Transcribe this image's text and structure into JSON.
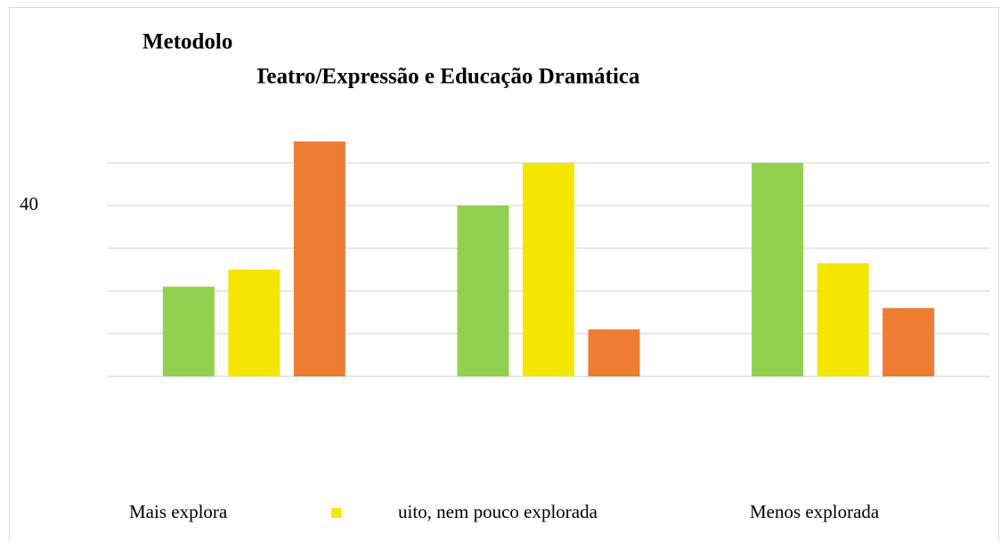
{
  "chart_data": {
    "type": "bar",
    "title": "Metodolo",
    "subtitle": "Teatro/Expressão e Educação Dramática",
    "categories": [
      null,
      null,
      null
    ],
    "series": [
      {
        "name": "Mais explora",
        "color": "#92d050",
        "values": [
          21,
          40,
          50
        ]
      },
      {
        "name": "uito, nem pouco explorada",
        "color": "#f5e600",
        "values": [
          25,
          50,
          26.5
        ]
      },
      {
        "name": "Menos explorada",
        "color": "#ed7d31",
        "values": [
          55,
          11,
          16
        ]
      }
    ],
    "ylim": [
      0,
      55
    ],
    "yticks": [
      40
    ],
    "ygrid": [
      0,
      10,
      20,
      30,
      40,
      50
    ],
    "grid": true,
    "legend": "bottom"
  }
}
